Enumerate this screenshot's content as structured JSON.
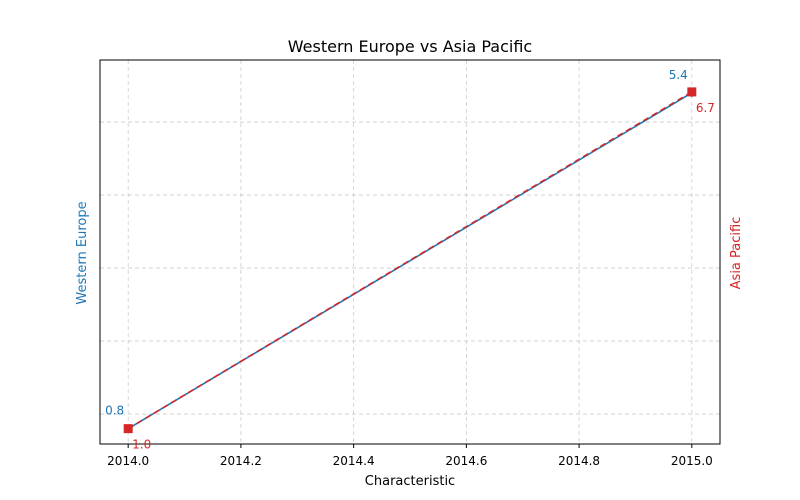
{
  "chart_data": {
    "type": "line",
    "title": "Western Europe vs Asia Pacific",
    "xlabel": "Characteristic",
    "x": [
      2014.0,
      2015.0
    ],
    "xlim": [
      2013.95,
      2015.05
    ],
    "xticks": [
      "2014.0",
      "2014.2",
      "2014.4",
      "2014.6",
      "2014.8",
      "2015.0"
    ],
    "grid": true,
    "series": [
      {
        "name": "Western Europe",
        "axis": "left",
        "values": [
          0.8,
          5.4
        ],
        "labels": [
          "0.8",
          "5.4"
        ],
        "color": "#1f77b4",
        "line_style": "solid",
        "marker": "circle",
        "ylim": [
          0.59,
          5.85
        ]
      },
      {
        "name": "Asia Pacific",
        "axis": "right",
        "values": [
          1.0,
          6.7
        ],
        "labels": [
          "1.0",
          "6.7"
        ],
        "color": "#d62728",
        "line_style": "dashed",
        "marker": "square",
        "ylim": [
          0.74,
          7.24
        ]
      }
    ]
  }
}
